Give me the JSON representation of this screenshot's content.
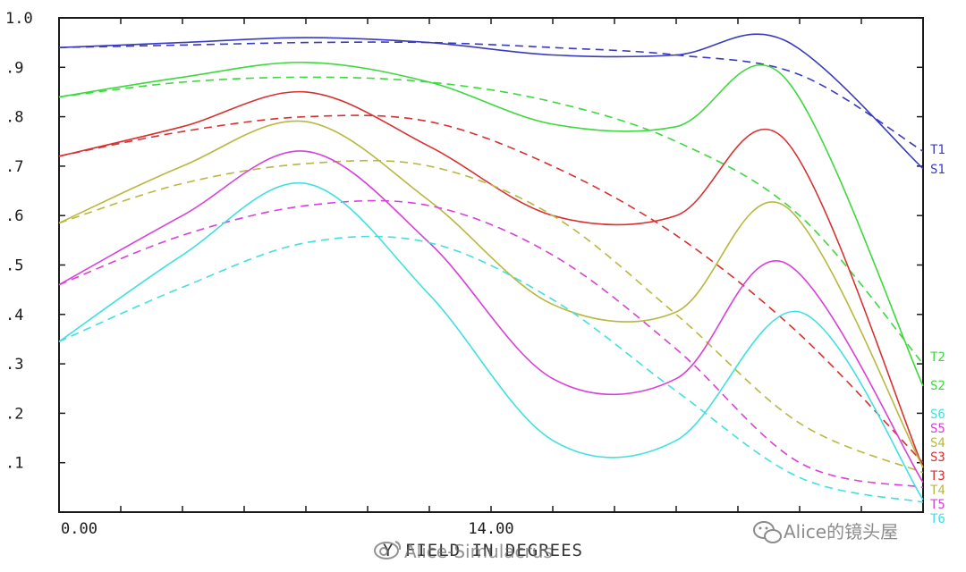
{
  "chart_data": {
    "type": "line",
    "xlabel": "Y FIELD IN DEGREES",
    "xlim": [
      0,
      28
    ],
    "ylim": [
      0,
      1.0
    ],
    "x_tick_labels": [
      {
        "x": 0,
        "label": "0.00"
      },
      {
        "x": 14,
        "label": "14.00"
      }
    ],
    "y_tick_labels": [
      {
        "y": 0.1,
        "label": ".1"
      },
      {
        "y": 0.2,
        "label": ".2"
      },
      {
        "y": 0.3,
        "label": ".3"
      },
      {
        "y": 0.4,
        "label": ".4"
      },
      {
        "y": 0.5,
        "label": ".5"
      },
      {
        "y": 0.6,
        "label": ".6"
      },
      {
        "y": 0.7,
        "label": ".7"
      },
      {
        "y": 0.8,
        "label": ".8"
      },
      {
        "y": 0.9,
        "label": ".9"
      },
      {
        "y": 1.0,
        "label": "1.0"
      }
    ],
    "grid": false,
    "legend_placement": "right",
    "series": [
      {
        "name": "S1",
        "color": "#3a3ac0",
        "style": "solid",
        "x": [
          0,
          4,
          8,
          12,
          16,
          20,
          23.5,
          28
        ],
        "y": [
          0.94,
          0.95,
          0.96,
          0.95,
          0.925,
          0.925,
          0.955,
          0.695
        ]
      },
      {
        "name": "T1",
        "color": "#3a3ac0",
        "style": "dashed",
        "x": [
          0,
          4,
          8,
          12,
          16,
          20,
          24,
          28
        ],
        "y": [
          0.94,
          0.945,
          0.95,
          0.95,
          0.94,
          0.925,
          0.885,
          0.73
        ]
      },
      {
        "name": "S2",
        "color": "#3ed83e",
        "style": "solid",
        "x": [
          0,
          4,
          8,
          12,
          16,
          20,
          23.5,
          28
        ],
        "y": [
          0.84,
          0.88,
          0.91,
          0.87,
          0.785,
          0.78,
          0.88,
          0.255
        ]
      },
      {
        "name": "T2",
        "color": "#3ed83e",
        "style": "dashed",
        "x": [
          0,
          4,
          8,
          12,
          16,
          20,
          24,
          28
        ],
        "y": [
          0.84,
          0.87,
          0.88,
          0.87,
          0.83,
          0.75,
          0.6,
          0.3
        ]
      },
      {
        "name": "S3",
        "color": "#d83030",
        "style": "solid",
        "x": [
          0,
          4,
          8,
          12,
          16,
          20,
          23.5,
          28
        ],
        "y": [
          0.72,
          0.78,
          0.85,
          0.74,
          0.6,
          0.6,
          0.755,
          0.09
        ]
      },
      {
        "name": "T3",
        "color": "#d83030",
        "style": "dashed",
        "x": [
          0,
          4,
          8,
          12,
          16,
          20,
          24,
          28
        ],
        "y": [
          0.72,
          0.77,
          0.8,
          0.79,
          0.7,
          0.56,
          0.36,
          0.1
        ]
      },
      {
        "name": "S4",
        "color": "#b8b840",
        "style": "solid",
        "x": [
          0,
          4,
          8,
          12,
          16,
          20,
          23.5,
          28
        ],
        "y": [
          0.585,
          0.7,
          0.79,
          0.63,
          0.42,
          0.405,
          0.62,
          0.09
        ]
      },
      {
        "name": "T4",
        "color": "#b8b840",
        "style": "dashed",
        "x": [
          0,
          4,
          8,
          12,
          16,
          20,
          24,
          28
        ],
        "y": [
          0.585,
          0.665,
          0.705,
          0.7,
          0.6,
          0.4,
          0.18,
          0.08
        ]
      },
      {
        "name": "S5",
        "color": "#d840d8",
        "style": "solid",
        "x": [
          0,
          4,
          8,
          12,
          16,
          20,
          23.5,
          28
        ],
        "y": [
          0.46,
          0.6,
          0.73,
          0.545,
          0.27,
          0.27,
          0.505,
          0.06
        ]
      },
      {
        "name": "T5",
        "color": "#d840d8",
        "style": "dashed",
        "x": [
          0,
          4,
          8,
          12,
          16,
          20,
          24,
          28
        ],
        "y": [
          0.46,
          0.56,
          0.62,
          0.62,
          0.52,
          0.33,
          0.1,
          0.05
        ]
      },
      {
        "name": "S6",
        "color": "#40e0e0",
        "style": "solid",
        "x": [
          0,
          4,
          8,
          12,
          16,
          20,
          24,
          28
        ],
        "y": [
          0.345,
          0.52,
          0.665,
          0.44,
          0.145,
          0.145,
          0.405,
          0.025
        ]
      },
      {
        "name": "T6",
        "color": "#40e0e0",
        "style": "dashed",
        "x": [
          0,
          4,
          8,
          12,
          16,
          20,
          24,
          28
        ],
        "y": [
          0.345,
          0.455,
          0.545,
          0.545,
          0.43,
          0.245,
          0.07,
          0.02
        ]
      }
    ],
    "legend_order": [
      "T1",
      "S1",
      "T2",
      "S2",
      "S6",
      "S5",
      "S4",
      "S3",
      "T3",
      "T4",
      "T5",
      "T6"
    ]
  },
  "watermarks": {
    "center": "Alice-Simulacrus",
    "corner": "Alice的镜头屋"
  },
  "icons": {
    "center_watermark_logo": "weibo-icon",
    "corner_watermark_logo": "wechat-icon"
  }
}
